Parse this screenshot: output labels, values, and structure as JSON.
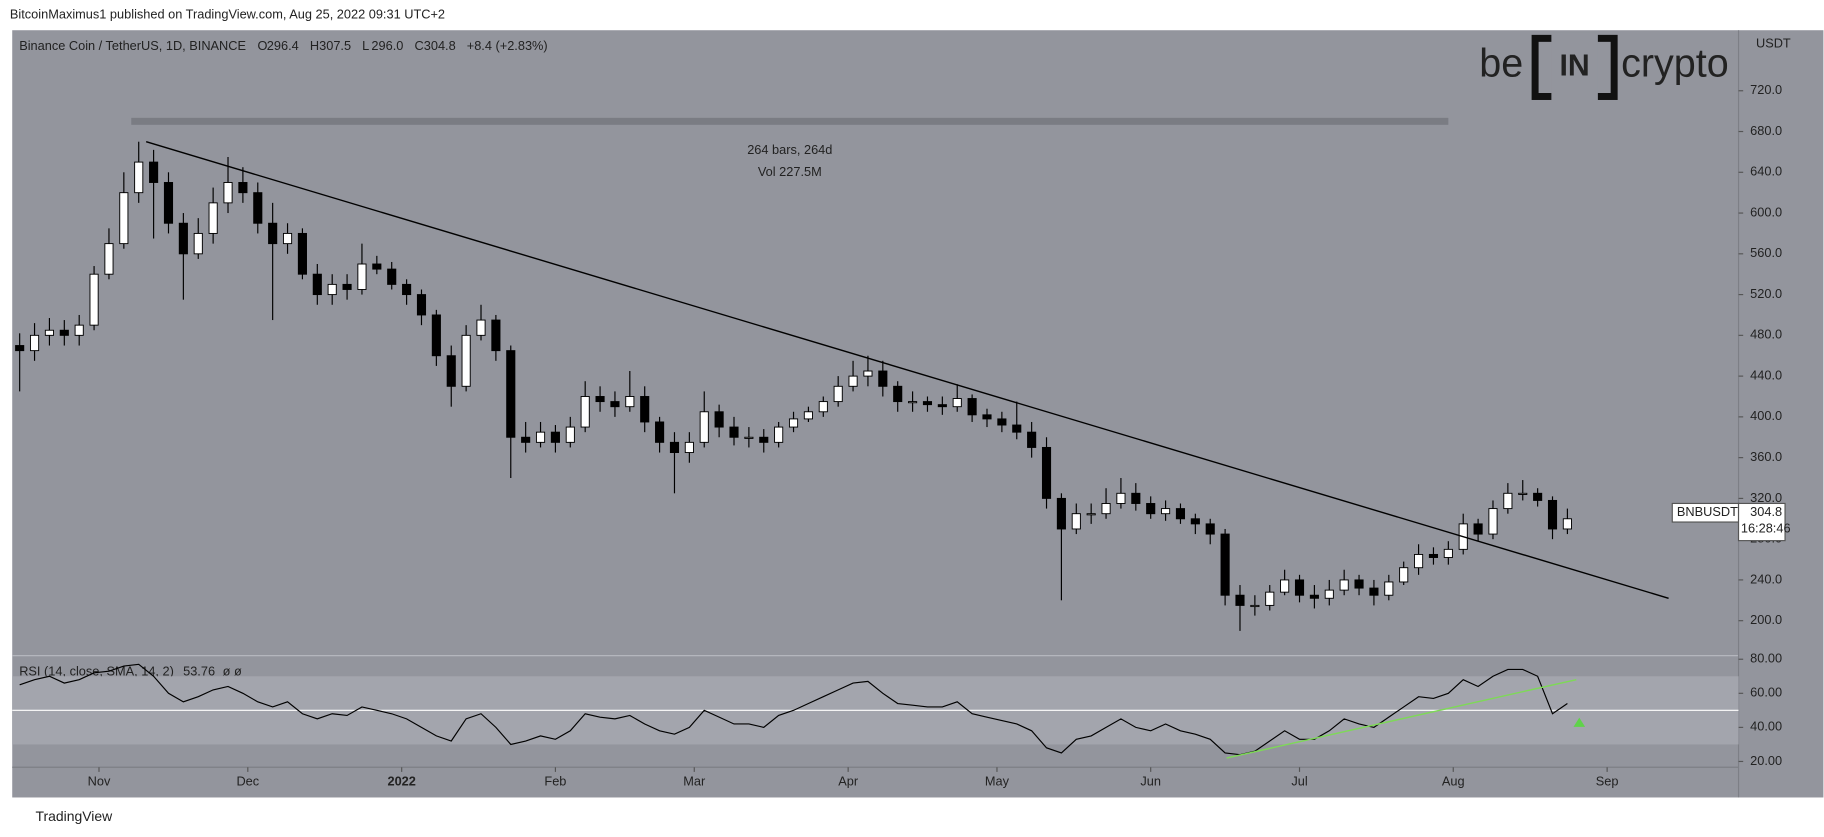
{
  "header": "BitcoinMaximus1 published on TradingView.com, Aug 25, 2022 09:31 UTC+2",
  "footer": "TradingView",
  "logo": [
    "be",
    "IN",
    "crypto"
  ],
  "chart_data": [
    {
      "type": "candlestick",
      "title": "Binance Coin / TetherUS, 1D, BINANCE",
      "ohlc": [
        {
          "label": "O",
          "value": "296.4"
        },
        {
          "label": "H",
          "value": "307.5"
        },
        {
          "label": "L",
          "value": "296.0"
        },
        {
          "label": "C",
          "value": "304.8"
        }
      ],
      "change": "+8.4 (+2.83%)",
      "measure": {
        "x": [
          7.5,
          96.0
        ],
        "y": 690,
        "texts": [
          "264 bars, 264d",
          "Vol 227.5M"
        ]
      },
      "trendline": {
        "x": [
          8.5,
          110.8
        ],
        "y": [
          670,
          222
        ]
      },
      "price_label": {
        "symbol": "BNBUSDT",
        "price": 304.8,
        "countdown": "16:28:46"
      },
      "axis_unit": "USDT",
      "up_color": "#ffffff",
      "down_color": "#000000",
      "open": [
        470,
        465,
        480,
        485,
        480,
        490,
        540,
        570,
        620,
        650,
        630,
        590,
        560,
        580,
        610,
        630,
        620,
        590,
        570,
        580,
        540,
        520,
        530,
        525,
        550,
        545,
        530,
        520,
        500,
        460,
        430,
        480,
        495,
        465,
        380,
        375,
        385,
        375,
        390,
        420,
        415,
        410,
        420,
        395,
        375,
        365,
        375,
        405,
        390,
        380,
        380,
        375,
        390,
        398,
        405,
        415,
        430,
        440,
        445,
        430,
        415,
        415,
        412,
        410,
        418,
        402,
        398,
        392,
        385,
        370,
        320,
        290,
        305,
        305,
        315,
        325,
        315,
        305,
        310,
        300,
        295,
        285,
        225,
        215,
        215,
        228,
        240,
        225,
        222,
        230,
        240,
        232,
        225,
        238,
        252,
        265,
        262,
        270,
        295,
        285,
        310,
        325,
        325,
        318,
        290
      ],
      "high": [
        482,
        492,
        497,
        495,
        500,
        548,
        585,
        640,
        670,
        662,
        640,
        600,
        595,
        625,
        655,
        645,
        630,
        610,
        590,
        585,
        550,
        540,
        540,
        570,
        558,
        552,
        535,
        525,
        505,
        470,
        490,
        510,
        500,
        470,
        395,
        395,
        392,
        400,
        435,
        430,
        425,
        445,
        430,
        400,
        385,
        385,
        425,
        412,
        400,
        390,
        388,
        395,
        405,
        410,
        420,
        440,
        455,
        460,
        455,
        435,
        425,
        420,
        420,
        432,
        422,
        408,
        405,
        415,
        395,
        380,
        325,
        315,
        315,
        330,
        340,
        335,
        322,
        318,
        315,
        305,
        300,
        290,
        235,
        225,
        235,
        250,
        245,
        235,
        240,
        250,
        245,
        240,
        245,
        258,
        275,
        272,
        278,
        305,
        300,
        318,
        335,
        338,
        330,
        322,
        310
      ],
      "low": [
        425,
        455,
        470,
        470,
        470,
        485,
        535,
        565,
        610,
        575,
        580,
        515,
        555,
        570,
        600,
        610,
        580,
        495,
        560,
        535,
        510,
        510,
        515,
        520,
        540,
        525,
        510,
        490,
        450,
        410,
        425,
        475,
        455,
        340,
        365,
        370,
        365,
        370,
        385,
        405,
        400,
        405,
        385,
        365,
        325,
        355,
        370,
        380,
        372,
        370,
        365,
        370,
        385,
        395,
        400,
        410,
        425,
        430,
        420,
        405,
        405,
        405,
        402,
        405,
        395,
        390,
        385,
        378,
        360,
        310,
        220,
        285,
        295,
        300,
        310,
        308,
        300,
        298,
        295,
        285,
        275,
        215,
        190,
        205,
        210,
        225,
        218,
        212,
        215,
        225,
        225,
        215,
        220,
        235,
        245,
        255,
        255,
        265,
        278,
        280,
        305,
        318,
        312,
        280,
        285
      ],
      "close": [
        465,
        480,
        485,
        480,
        490,
        540,
        570,
        620,
        650,
        630,
        590,
        560,
        580,
        610,
        630,
        620,
        590,
        570,
        580,
        540,
        520,
        530,
        525,
        550,
        545,
        530,
        520,
        500,
        460,
        430,
        480,
        495,
        465,
        380,
        375,
        385,
        375,
        390,
        420,
        415,
        410,
        420,
        395,
        375,
        365,
        375,
        405,
        390,
        380,
        380,
        375,
        390,
        398,
        405,
        415,
        430,
        440,
        445,
        430,
        415,
        415,
        412,
        410,
        418,
        402,
        398,
        392,
        385,
        370,
        320,
        290,
        305,
        305,
        315,
        325,
        315,
        305,
        310,
        300,
        295,
        285,
        225,
        215,
        215,
        228,
        240,
        225,
        222,
        230,
        240,
        232,
        225,
        238,
        252,
        265,
        262,
        270,
        295,
        285,
        310,
        325,
        325,
        318,
        290,
        300
      ],
      "xlim": [
        -0.5,
        115.5
      ],
      "xticks": [
        {
          "value": 5.33,
          "label": "Nov"
        },
        {
          "value": 15.33,
          "label": "Dec"
        },
        {
          "value": 25.67,
          "label": "2022"
        },
        {
          "value": 36,
          "label": "Feb"
        },
        {
          "value": 45.33,
          "label": "Mar"
        },
        {
          "value": 55.67,
          "label": "Apr"
        },
        {
          "value": 65.67,
          "label": "May"
        },
        {
          "value": 76,
          "label": "Jun"
        },
        {
          "value": 86,
          "label": "Jul"
        },
        {
          "value": 96.33,
          "label": "Aug"
        },
        {
          "value": 106.67,
          "label": "Sep"
        }
      ],
      "ylim": [
        165.7,
        779.4
      ],
      "yticks": [
        {
          "value": 200,
          "label": "200.0"
        },
        {
          "value": 240,
          "label": "240.0"
        },
        {
          "value": 280,
          "label": "280.0"
        },
        {
          "value": 320,
          "label": "320.0"
        },
        {
          "value": 360,
          "label": "360.0"
        },
        {
          "value": 400,
          "label": "400.0"
        },
        {
          "value": 440,
          "label": "440.0"
        },
        {
          "value": 480,
          "label": "480.0"
        },
        {
          "value": 520,
          "label": "520.0"
        },
        {
          "value": 560,
          "label": "560.0"
        },
        {
          "value": 600,
          "label": "600.0"
        },
        {
          "value": 640,
          "label": "640.0"
        },
        {
          "value": 680,
          "label": "680.0"
        },
        {
          "value": 720,
          "label": "720.0"
        }
      ]
    },
    {
      "type": "line",
      "title": "RSI (14, close, SMA, 14, 2)",
      "last": 53.76,
      "flags": "ø ø",
      "color": "#000000",
      "values": [
        65,
        68,
        70,
        66,
        68,
        72,
        73,
        76,
        77,
        70,
        60,
        55,
        58,
        62,
        64,
        60,
        55,
        52,
        55,
        48,
        45,
        48,
        47,
        52,
        50,
        48,
        45,
        40,
        35,
        32,
        45,
        48,
        40,
        30,
        32,
        35,
        33,
        38,
        48,
        46,
        45,
        47,
        42,
        38,
        36,
        40,
        50,
        46,
        42,
        42,
        40,
        47,
        50,
        54,
        58,
        62,
        66,
        67,
        60,
        54,
        53,
        52,
        52,
        55,
        48,
        46,
        44,
        42,
        38,
        28,
        25,
        33,
        35,
        40,
        45,
        40,
        38,
        42,
        38,
        36,
        33,
        25,
        24,
        26,
        32,
        38,
        33,
        33,
        38,
        45,
        42,
        40,
        46,
        52,
        58,
        57,
        60,
        68,
        64,
        70,
        74,
        74,
        70,
        48,
        54
      ],
      "band": [
        30,
        70
      ],
      "midline": 50,
      "trendline": {
        "x": [
          81.1,
          104.6
        ],
        "y": [
          22,
          68
        ],
        "color": "#7ed957"
      },
      "marker": {
        "x": 104.8,
        "y": 43,
        "color": "#5fd34a"
      },
      "xlim": [
        -0.5,
        115.5
      ],
      "ylim": [
        16.6,
        82.1
      ],
      "yticks": [
        {
          "value": 20,
          "label": "20.00"
        },
        {
          "value": 40,
          "label": "40.00"
        },
        {
          "value": 60,
          "label": "60.00"
        },
        {
          "value": 80,
          "label": "80.00"
        }
      ]
    }
  ]
}
